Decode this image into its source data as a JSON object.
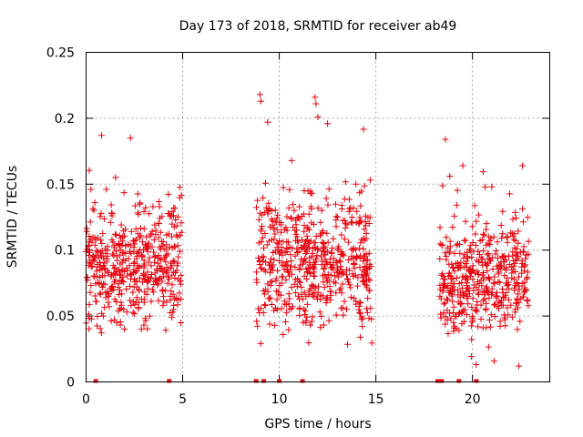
{
  "chart_data": {
    "type": "scatter",
    "title": "Day 173 of 2018, SRMTID for receiver ab49",
    "xlabel": "GPS time / hours",
    "ylabel": "SRMTID / TECUs",
    "xlim": [
      0,
      24
    ],
    "ylim": [
      0,
      0.25
    ],
    "xticks": [
      0,
      5,
      10,
      15,
      20
    ],
    "xtick_labels": [
      "0",
      "5",
      "10",
      "15",
      "20"
    ],
    "yticks": [
      0,
      0.05,
      0.1,
      0.15,
      0.2,
      0.25
    ],
    "ytick_labels": [
      "0",
      "0.05",
      "0.1",
      "0.15",
      "0.2",
      "0.25"
    ],
    "grid": true,
    "marker": "plus",
    "color": "#e8000b",
    "clusters": [
      {
        "x_start": 0.0,
        "x_end": 4.95,
        "y_center": 0.087,
        "y_spread": 0.025,
        "y_min": 0.03,
        "y_max": 0.187
      },
      {
        "x_start": 8.8,
        "x_end": 14.8,
        "y_center": 0.09,
        "y_spread": 0.028,
        "y_min": 0.022,
        "y_max": 0.218
      },
      {
        "x_start": 18.3,
        "x_end": 22.9,
        "y_center": 0.078,
        "y_spread": 0.024,
        "y_min": 0.012,
        "y_max": 0.184
      }
    ],
    "outliers": [
      {
        "x": 0.8,
        "y": 0.187
      },
      {
        "x": 2.3,
        "y": 0.185
      },
      {
        "x": 9.0,
        "y": 0.218
      },
      {
        "x": 9.05,
        "y": 0.213
      },
      {
        "x": 9.4,
        "y": 0.197
      },
      {
        "x": 11.85,
        "y": 0.216
      },
      {
        "x": 11.9,
        "y": 0.211
      },
      {
        "x": 12.0,
        "y": 0.201
      },
      {
        "x": 12.5,
        "y": 0.196
      },
      {
        "x": 18.6,
        "y": 0.184
      },
      {
        "x": 19.5,
        "y": 0.164
      },
      {
        "x": 21.0,
        "y": 0.148
      },
      {
        "x": 22.4,
        "y": 0.012
      }
    ],
    "zero_markers_x": [
      0.5,
      4.3,
      8.8,
      9.2,
      10.0,
      11.2,
      18.2,
      18.4,
      19.3,
      20.2
    ]
  }
}
